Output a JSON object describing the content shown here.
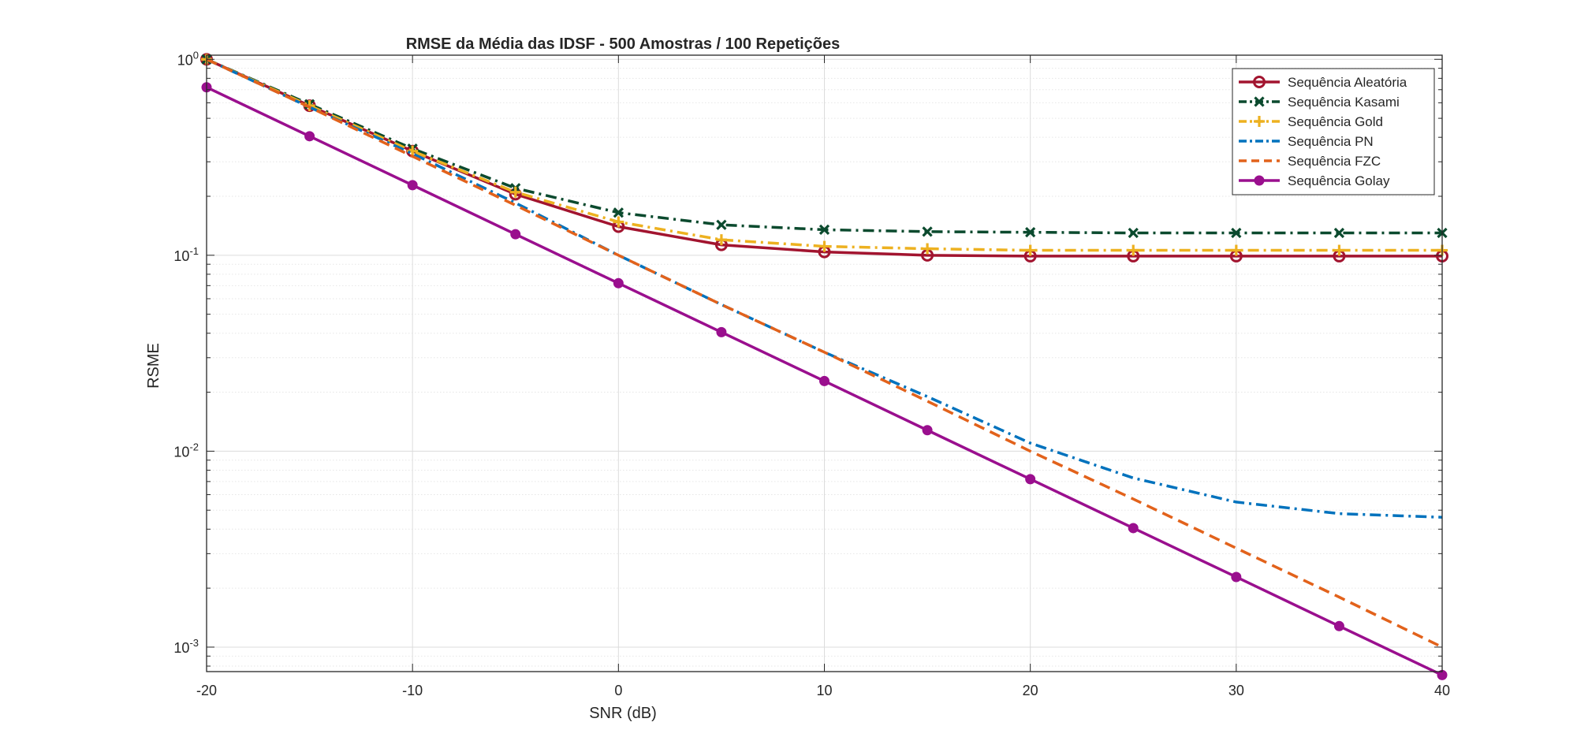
{
  "chart_data": {
    "type": "line",
    "title": "RMSE da Média das IDSF - 500 Amostras / 100 Repetições",
    "xlabel": "SNR (dB)",
    "ylabel": "RSME",
    "xlim": [
      -20,
      40
    ],
    "ylim": [
      0.00075,
      1.05
    ],
    "y_scale": "log",
    "grid": true,
    "legend_position": "top-right",
    "x_ticks": [
      "-20",
      "-10",
      "0",
      "10",
      "20",
      "30",
      "40"
    ],
    "y_ticks": [
      {
        "base": "10",
        "exp": "0"
      },
      {
        "base": "10",
        "exp": "-1"
      },
      {
        "base": "10",
        "exp": "-2"
      },
      {
        "base": "10",
        "exp": "-3"
      }
    ],
    "x": [
      -20,
      -15,
      -10,
      -5,
      0,
      5,
      10,
      15,
      20,
      25,
      30,
      35,
      40
    ],
    "series": [
      {
        "name": "Sequência Aleatória",
        "color": "#A2142F",
        "dash": "solid",
        "marker": "circle-open",
        "values": [
          1.0,
          0.58,
          0.34,
          0.205,
          0.14,
          0.113,
          0.104,
          0.1,
          0.099,
          0.099,
          0.099,
          0.099,
          0.099
        ]
      },
      {
        "name": "Sequência Kasami",
        "color": "#0B4A2E",
        "dash": "dashdot",
        "marker": "x",
        "values": [
          1.0,
          0.59,
          0.35,
          0.22,
          0.165,
          0.143,
          0.135,
          0.132,
          0.131,
          0.13,
          0.13,
          0.13,
          0.13
        ]
      },
      {
        "name": "Sequência Gold",
        "color": "#EDB120",
        "dash": "dashdot",
        "marker": "plus",
        "values": [
          1.0,
          0.58,
          0.34,
          0.21,
          0.148,
          0.12,
          0.111,
          0.108,
          0.106,
          0.106,
          0.106,
          0.106,
          0.106
        ]
      },
      {
        "name": "Sequência PN",
        "color": "#0072BD",
        "dash": "dashdot",
        "marker": "none",
        "values": [
          1.0,
          0.57,
          0.33,
          0.185,
          0.1,
          0.056,
          0.032,
          0.019,
          0.011,
          0.0073,
          0.0055,
          0.0048,
          0.0046
        ]
      },
      {
        "name": "Sequência FZC",
        "color": "#E2621B",
        "dash": "dashed",
        "marker": "none",
        "values": [
          1.0,
          0.57,
          0.32,
          0.18,
          0.1,
          0.056,
          0.032,
          0.018,
          0.01,
          0.0057,
          0.0032,
          0.0018,
          0.001
        ]
      },
      {
        "name": "Sequência Golay",
        "color": "#9A0F8E",
        "dash": "solid",
        "marker": "dot",
        "values": [
          0.72,
          0.405,
          0.228,
          0.128,
          0.072,
          0.0405,
          0.0228,
          0.0128,
          0.0072,
          0.00405,
          0.00228,
          0.00128,
          0.00072
        ]
      }
    ]
  }
}
